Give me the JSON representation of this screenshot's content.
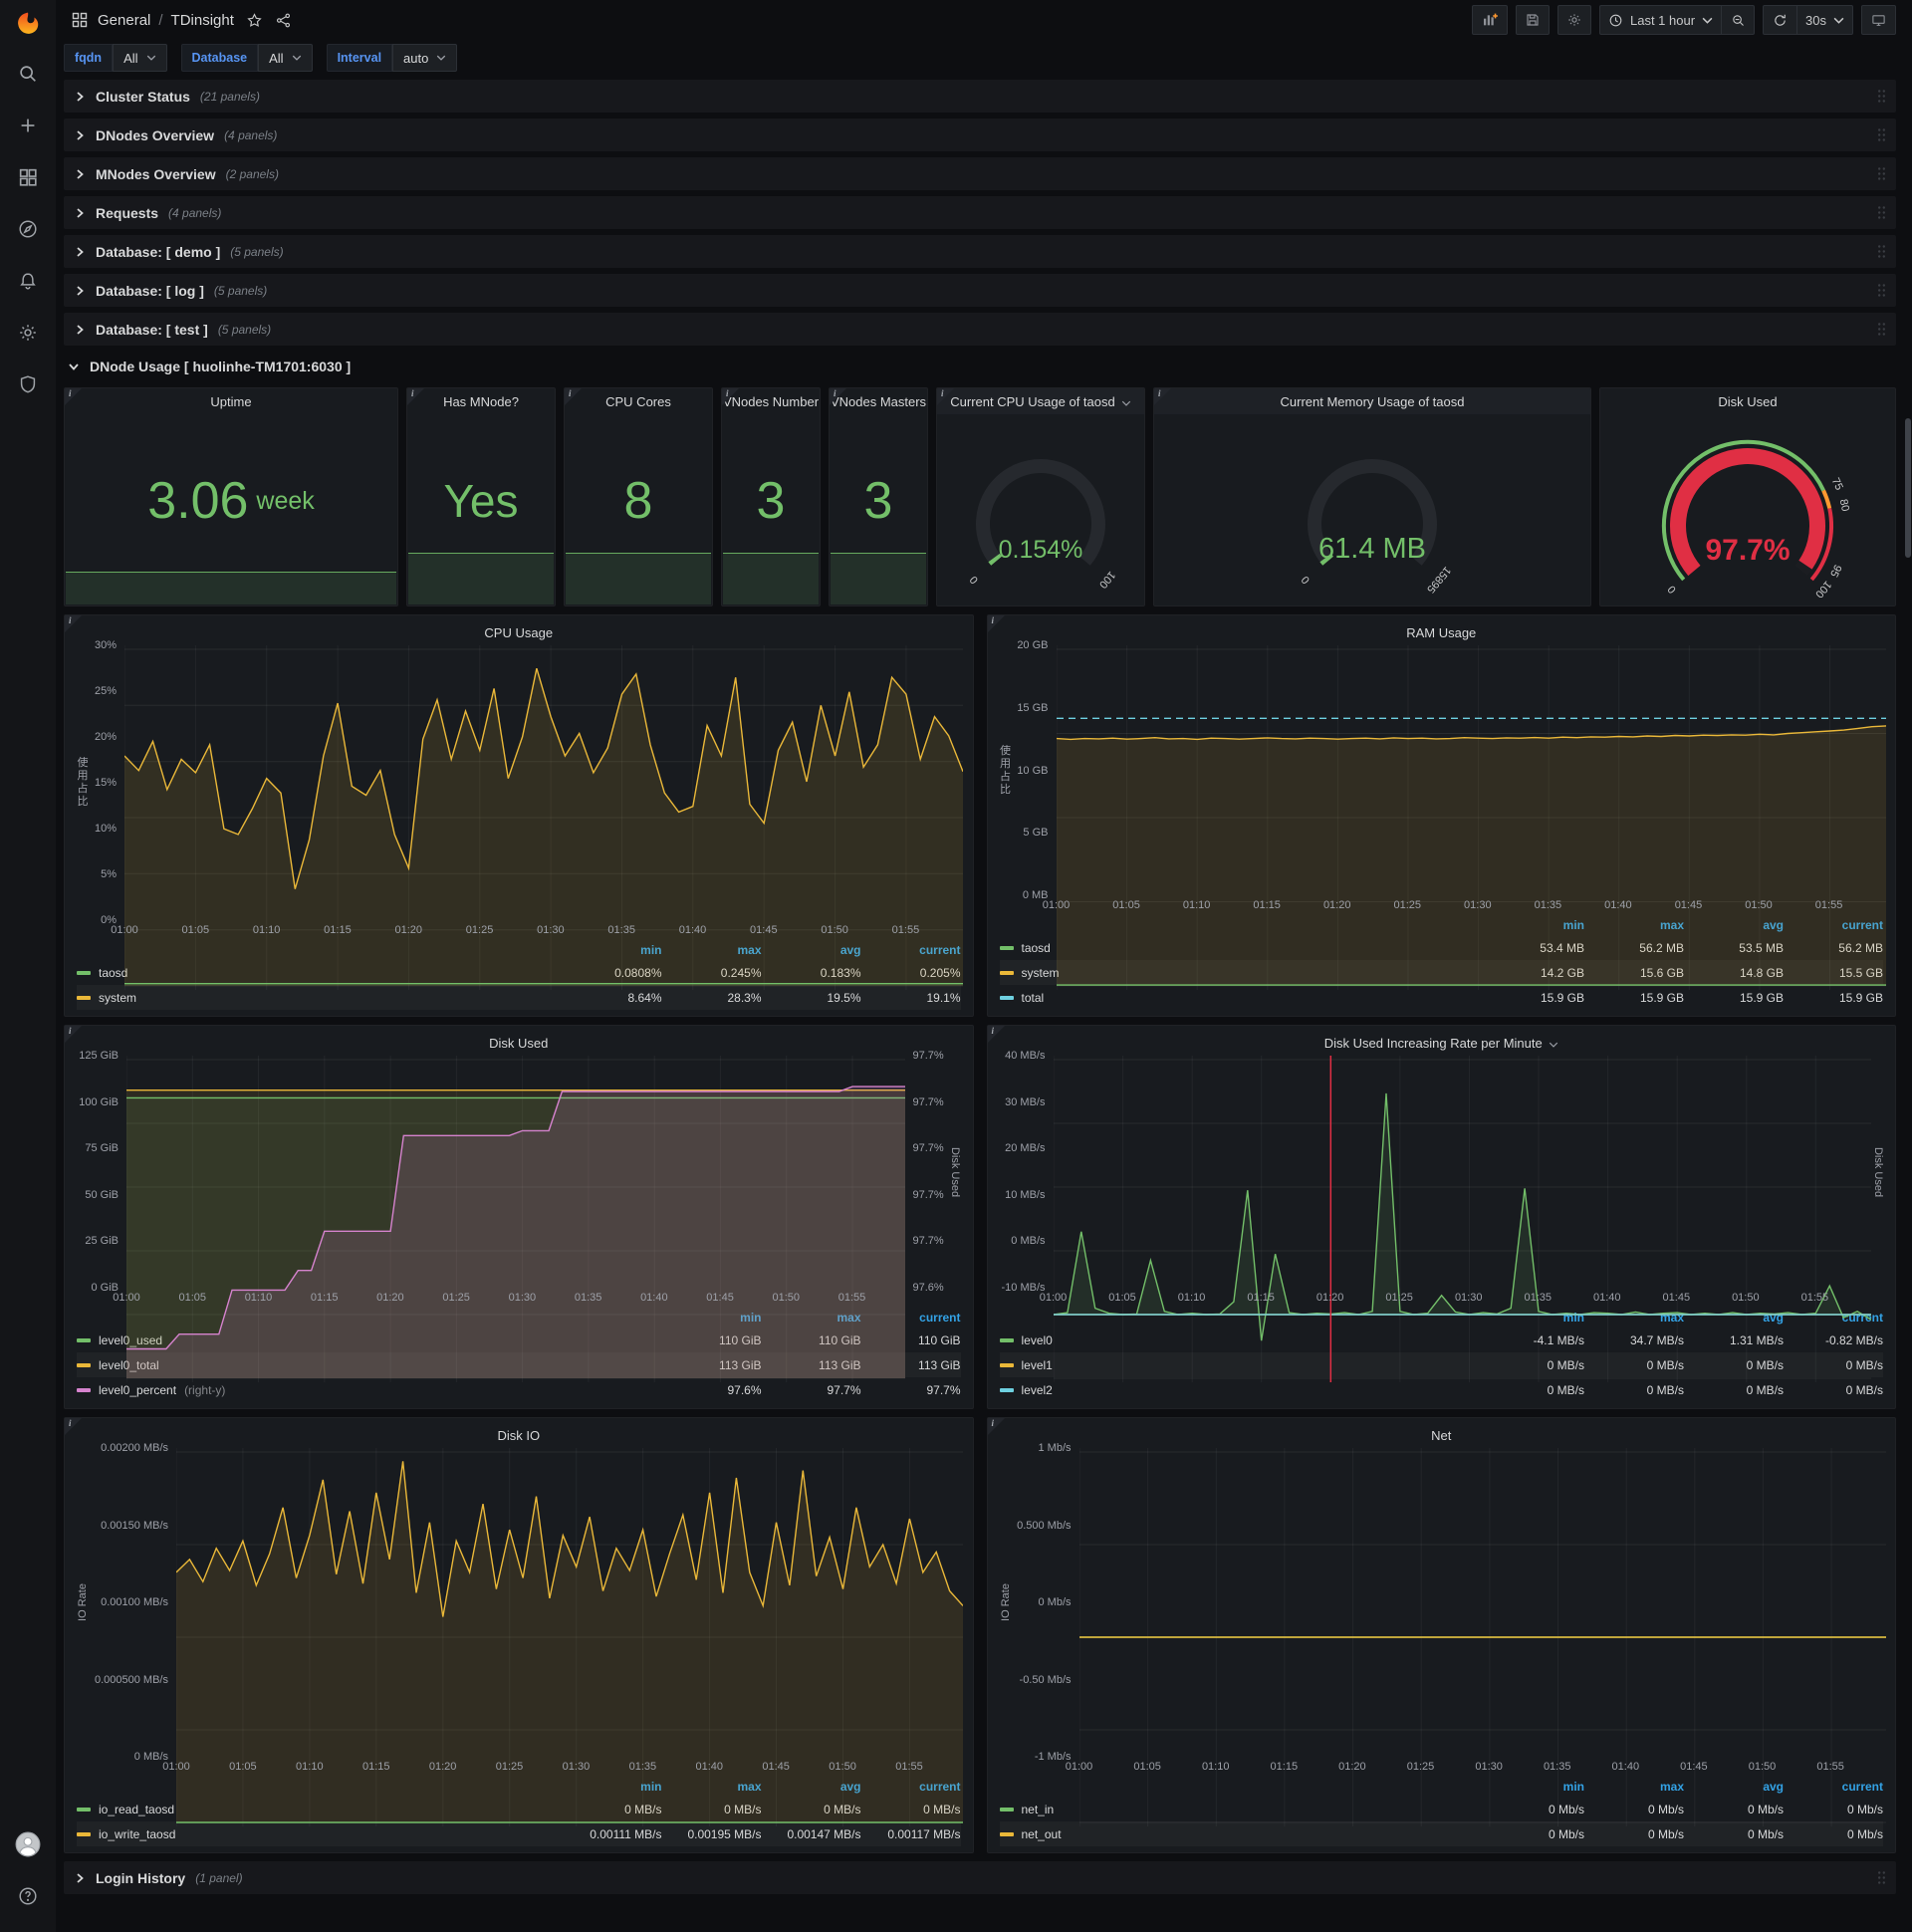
{
  "nav": {
    "section": "General",
    "separator": "/",
    "title": "TDinsight",
    "time_range": "Last 1 hour",
    "refresh": "30s"
  },
  "variables": [
    {
      "label": "fqdn",
      "value": "All"
    },
    {
      "label": "Database",
      "value": "All"
    },
    {
      "label": "Interval",
      "value": "auto"
    }
  ],
  "rows": [
    {
      "title": "Cluster Status",
      "count": "(21 panels)"
    },
    {
      "title": "DNodes Overview",
      "count": "(4 panels)"
    },
    {
      "title": "MNodes Overview",
      "count": "(2 panels)"
    },
    {
      "title": "Requests",
      "count": "(4 panels)"
    },
    {
      "title": "Database: [ demo ]",
      "count": "(5 panels)"
    },
    {
      "title": "Database: [ log ]",
      "count": "(5 panels)"
    },
    {
      "title": "Database: [ test ]",
      "count": "(5 panels)"
    }
  ],
  "expanded_row": {
    "title": "DNode Usage [ huolinhe-TM1701:6030 ]"
  },
  "footer_row": {
    "title": "Login History",
    "count": "(1 panel)"
  },
  "stats": [
    {
      "title": "Uptime",
      "value": "3.06",
      "suffix": "week"
    },
    {
      "title": "Has MNode?",
      "value": "Yes",
      "suffix": ""
    },
    {
      "title": "CPU Cores",
      "value": "8",
      "suffix": ""
    },
    {
      "title": "VNodes Number",
      "value": "3",
      "suffix": ""
    },
    {
      "title": "VNodes Masters",
      "value": "3",
      "suffix": ""
    }
  ],
  "gauges": [
    {
      "title": "Current CPU Usage of taosd",
      "dropdown": true,
      "value": "0.154%",
      "fraction": 0.0018,
      "scale_labels": [
        "0",
        "100"
      ],
      "thresholds": false,
      "info": true
    },
    {
      "title": "Current Memory Usage of taosd",
      "dropdown": false,
      "value": "61.4 MB",
      "fraction": 0.0039,
      "scale_labels": [
        "0",
        "15895"
      ],
      "thresholds": false,
      "info": true
    },
    {
      "title": "Disk Used",
      "dropdown": false,
      "value": "97.7%",
      "fraction": 0.977,
      "scale_labels": [
        "0",
        "75",
        "80",
        "95",
        "100"
      ],
      "thresholds": true,
      "info": false
    }
  ],
  "colors": {
    "green": "#73bf69",
    "yellow": "#eab839",
    "blue": "#6ed0e0",
    "magenta": "#d683ce",
    "red": "#e02f44",
    "orange": "#ff9830",
    "header_blue": "#33a2e5"
  },
  "chart_data": [
    {
      "id": "cpu-usage",
      "type": "line",
      "title": "CPU Usage",
      "title_dropdown": false,
      "ylabel": "使用占比",
      "ylim": [
        0,
        30
      ],
      "yticks": [
        "30%",
        "25%",
        "20%",
        "15%",
        "10%",
        "5%",
        "0%"
      ],
      "xticks": [
        "01:00",
        "01:05",
        "01:10",
        "01:15",
        "01:20",
        "01:25",
        "01:30",
        "01:35",
        "01:40",
        "01:45",
        "01:50",
        "01:55"
      ],
      "series": [
        {
          "name": "system",
          "color": "#eab839",
          "fill": 0.13,
          "values": [
            20.5,
            19.2,
            21.8,
            17.5,
            20.2,
            19.0,
            21.5,
            14.0,
            13.5,
            15.8,
            18.5,
            17.2,
            8.64,
            13.0,
            20.5,
            25.2,
            17.8,
            17.0,
            19.2,
            13.5,
            10.5,
            22.0,
            25.5,
            20.2,
            24.5,
            21.0,
            26.5,
            18.5,
            22.2,
            28.3,
            24.0,
            20.5,
            22.5,
            19.0,
            21.2,
            26.0,
            27.8,
            21.5,
            17.2,
            15.5,
            16.0,
            23.2,
            20.5,
            27.5,
            16.2,
            14.5,
            21.0,
            23.5,
            18.2,
            25.0,
            20.5,
            26.2,
            19.5,
            21.5,
            27.5,
            26.0,
            20.2,
            24.0,
            22.3,
            19.1
          ]
        },
        {
          "name": "taosd",
          "color": "#73bf69",
          "fill": 0.08,
          "values": [
            0.2,
            0.2
          ]
        }
      ],
      "legend": {
        "headers": [
          "min",
          "max",
          "avg",
          "current"
        ],
        "rows": [
          {
            "name": "taosd",
            "color": "#73bf69",
            "note": "",
            "values": [
              "0.0808%",
              "0.245%",
              "0.183%",
              "0.205%"
            ]
          },
          {
            "name": "system",
            "color": "#eab839",
            "note": "",
            "values": [
              "8.64%",
              "28.3%",
              "19.5%",
              "19.1%"
            ]
          }
        ]
      }
    },
    {
      "id": "ram-usage",
      "type": "line",
      "title": "RAM Usage",
      "title_dropdown": false,
      "ylabel": "使用占比",
      "ylim": [
        0,
        20
      ],
      "yticks": [
        "20 GB",
        "15 GB",
        "10 GB",
        "5 GB",
        "0 MB"
      ],
      "xticks": [
        "01:00",
        "01:05",
        "01:10",
        "01:15",
        "01:20",
        "01:25",
        "01:30",
        "01:35",
        "01:40",
        "01:45",
        "01:50",
        "01:55"
      ],
      "series": [
        {
          "name": "system",
          "color": "#eab839",
          "fill": 0.12,
          "values": [
            14.7,
            14.65,
            14.7,
            14.68,
            14.72,
            14.66,
            14.7,
            14.75,
            14.68,
            14.7,
            14.65,
            14.72,
            14.7,
            14.66,
            14.7,
            14.74,
            14.7,
            14.68,
            14.72,
            14.7,
            14.66,
            14.7,
            14.72,
            14.68,
            14.74,
            14.7,
            14.72,
            14.68,
            14.7,
            14.75,
            14.72,
            14.7,
            14.74,
            14.72,
            14.76,
            14.72,
            14.78,
            14.75,
            14.8,
            14.78,
            14.82,
            14.8,
            14.85,
            14.82,
            14.88,
            14.85,
            14.9,
            14.88,
            14.92,
            14.9,
            14.95,
            14.92,
            15.0,
            15.05,
            15.1,
            15.15,
            15.2,
            15.3,
            15.4,
            15.45
          ]
        },
        {
          "name": "total",
          "color": "#6ed0e0",
          "fill": 0,
          "dash": true,
          "values": [
            15.9,
            15.9
          ]
        },
        {
          "name": "taosd",
          "color": "#73bf69",
          "fill": 0.08,
          "values": [
            0.055,
            0.055
          ]
        }
      ],
      "legend": {
        "headers": [
          "min",
          "max",
          "avg",
          "current"
        ],
        "rows": [
          {
            "name": "taosd",
            "color": "#73bf69",
            "note": "",
            "values": [
              "53.4 MB",
              "56.2 MB",
              "53.5 MB",
              "56.2 MB"
            ]
          },
          {
            "name": "system",
            "color": "#eab839",
            "note": "",
            "values": [
              "14.2 GB",
              "15.6 GB",
              "14.8 GB",
              "15.5 GB"
            ]
          },
          {
            "name": "total",
            "color": "#6ed0e0",
            "note": "",
            "values": [
              "15.9 GB",
              "15.9 GB",
              "15.9 GB",
              "15.9 GB"
            ]
          }
        ]
      }
    },
    {
      "id": "disk-used",
      "type": "line",
      "title": "Disk Used",
      "title_dropdown": false,
      "ylabel": "",
      "ylim": [
        0,
        125
      ],
      "yticks": [
        "125 GiB",
        "100 GiB",
        "75 GiB",
        "50 GiB",
        "25 GiB",
        "0 GiB"
      ],
      "right_label": "Disk Used",
      "right_ylim": [
        97.59,
        97.72
      ],
      "right_ticks": [
        "97.7%",
        "97.7%",
        "97.7%",
        "97.7%",
        "97.7%",
        "97.6%"
      ],
      "xticks": [
        "01:00",
        "01:05",
        "01:10",
        "01:15",
        "01:20",
        "01:25",
        "01:30",
        "01:35",
        "01:40",
        "01:45",
        "01:50",
        "01:55"
      ],
      "series": [
        {
          "name": "level0_total",
          "color": "#eab839",
          "fill": 0.1,
          "values": [
            113,
            113
          ]
        },
        {
          "name": "level0_used",
          "color": "#73bf69",
          "fill": 0.1,
          "values": [
            110,
            110
          ]
        },
        {
          "name": "level0_percent",
          "color": "#d683ce",
          "fill": 0.16,
          "axis": "right",
          "values": [
            97.602,
            97.602,
            97.602,
            97.602,
            97.608,
            97.608,
            97.608,
            97.608,
            97.626,
            97.626,
            97.626,
            97.626,
            97.626,
            97.634,
            97.634,
            97.65,
            97.65,
            97.65,
            97.65,
            97.65,
            97.65,
            97.689,
            97.689,
            97.689,
            97.689,
            97.689,
            97.689,
            97.689,
            97.689,
            97.689,
            97.691,
            97.691,
            97.691,
            97.707,
            97.707,
            97.707,
            97.707,
            97.707,
            97.707,
            97.707,
            97.707,
            97.707,
            97.707,
            97.707,
            97.707,
            97.707,
            97.707,
            97.707,
            97.707,
            97.707,
            97.707,
            97.707,
            97.707,
            97.707,
            97.707,
            97.709,
            97.709,
            97.709,
            97.709,
            97.709
          ]
        }
      ],
      "legend": {
        "headers": [
          "min",
          "max",
          "current"
        ],
        "rows": [
          {
            "name": "level0_used",
            "color": "#73bf69",
            "note": "",
            "values": [
              "110 GiB",
              "110 GiB",
              "110 GiB"
            ]
          },
          {
            "name": "level0_total",
            "color": "#eab839",
            "note": "",
            "values": [
              "113 GiB",
              "113 GiB",
              "113 GiB"
            ]
          },
          {
            "name": "level0_percent",
            "color": "#d683ce",
            "note": "(right-y)",
            "values": [
              "97.6%",
              "97.7%",
              "97.7%"
            ]
          }
        ]
      }
    },
    {
      "id": "disk-rate",
      "type": "line",
      "title": "Disk Used Increasing Rate per Minute",
      "title_dropdown": true,
      "ylabel": "",
      "ylim": [
        -10,
        40
      ],
      "yticks": [
        "40 MB/s",
        "30 MB/s",
        "20 MB/s",
        "10 MB/s",
        "0 MB/s",
        "-10 MB/s"
      ],
      "right_label": "Disk Used",
      "annotation_minute": 20,
      "annotation_color": "#e02f44",
      "xticks": [
        "01:00",
        "01:05",
        "01:10",
        "01:15",
        "01:20",
        "01:25",
        "01:30",
        "01:35",
        "01:40",
        "01:45",
        "01:50",
        "01:55"
      ],
      "series": [
        {
          "name": "level0",
          "color": "#73bf69",
          "fill": 0.12,
          "values": [
            0,
            0.3,
            13,
            1,
            0.2,
            0,
            0.1,
            8.5,
            0.5,
            0,
            0.2,
            0,
            0.1,
            2,
            19.5,
            -4.1,
            9.5,
            0.3,
            0,
            0.2,
            0.1,
            0.3,
            0,
            0.5,
            34.7,
            0.5,
            0,
            0.2,
            3,
            0.4,
            0,
            0.3,
            0.1,
            1,
            19.8,
            0.5,
            0,
            0.2,
            0,
            0.3,
            0.2,
            0,
            0.4,
            0,
            0.2,
            0.3,
            0,
            0.2,
            0,
            0.3,
            0,
            0.2,
            0.1,
            0.3,
            0,
            0.2,
            4.5,
            -0.5,
            0.5,
            -0.82
          ]
        },
        {
          "name": "level1",
          "color": "#eab839",
          "fill": 0,
          "values": [
            0,
            0
          ]
        },
        {
          "name": "level2",
          "color": "#6ed0e0",
          "fill": 0,
          "values": [
            0,
            0
          ]
        }
      ],
      "legend": {
        "headers": [
          "min",
          "max",
          "avg",
          "current"
        ],
        "rows": [
          {
            "name": "level0",
            "color": "#73bf69",
            "note": "",
            "values": [
              "-4.1 MB/s",
              "34.7 MB/s",
              "1.31 MB/s",
              "-0.82 MB/s"
            ]
          },
          {
            "name": "level1",
            "color": "#eab839",
            "note": "",
            "values": [
              "0 MB/s",
              "0 MB/s",
              "0 MB/s",
              "0 MB/s"
            ]
          },
          {
            "name": "level2",
            "color": "#6ed0e0",
            "note": "",
            "values": [
              "0 MB/s",
              "0 MB/s",
              "0 MB/s",
              "0 MB/s"
            ]
          }
        ]
      }
    },
    {
      "id": "disk-io",
      "type": "line",
      "title": "Disk IO",
      "title_dropdown": false,
      "ylabel": "IO Rate",
      "ylim": [
        0,
        0.002
      ],
      "yticks": [
        "0.00200 MB/s",
        "0.00150 MB/s",
        "0.00100 MB/s",
        "0.000500 MB/s",
        "0 MB/s"
      ],
      "xticks": [
        "01:00",
        "01:05",
        "01:10",
        "01:15",
        "01:20",
        "01:25",
        "01:30",
        "01:35",
        "01:40",
        "01:45",
        "01:50",
        "01:55"
      ],
      "series": [
        {
          "name": "io_write_taosd",
          "color": "#eab839",
          "fill": 0.12,
          "values": [
            0.00135,
            0.00142,
            0.0013,
            0.00148,
            0.00136,
            0.00152,
            0.00128,
            0.00145,
            0.0017,
            0.00132,
            0.00155,
            0.00185,
            0.00134,
            0.00168,
            0.00129,
            0.00178,
            0.00142,
            0.00195,
            0.00124,
            0.00162,
            0.00111,
            0.00152,
            0.00135,
            0.00172,
            0.00126,
            0.00158,
            0.00132,
            0.00176,
            0.00121,
            0.00155,
            0.00138,
            0.00165,
            0.00125,
            0.00148,
            0.00136,
            0.00158,
            0.00122,
            0.00145,
            0.00166,
            0.00131,
            0.00178,
            0.00124,
            0.00186,
            0.00135,
            0.00117,
            0.00162,
            0.00128,
            0.0019,
            0.00133,
            0.00154,
            0.00126,
            0.0017,
            0.00138,
            0.0015,
            0.00129,
            0.00164,
            0.00135,
            0.00146,
            0.00125,
            0.00117
          ]
        },
        {
          "name": "io_read_taosd",
          "color": "#73bf69",
          "fill": 0,
          "values": [
            0,
            0
          ]
        }
      ],
      "legend": {
        "headers": [
          "min",
          "max",
          "avg",
          "current"
        ],
        "rows": [
          {
            "name": "io_read_taosd",
            "color": "#73bf69",
            "note": "",
            "values": [
              "0 MB/s",
              "0 MB/s",
              "0 MB/s",
              "0 MB/s"
            ]
          },
          {
            "name": "io_write_taosd",
            "color": "#eab839",
            "note": "",
            "values": [
              "0.00111 MB/s",
              "0.00195 MB/s",
              "0.00147 MB/s",
              "0.00117 MB/s"
            ]
          }
        ]
      }
    },
    {
      "id": "net",
      "type": "line",
      "title": "Net",
      "title_dropdown": false,
      "ylabel": "IO Rate",
      "ylim": [
        -1,
        1
      ],
      "yticks": [
        "1 Mb/s",
        "0.500 Mb/s",
        "0 Mb/s",
        "-0.50 Mb/s",
        "-1 Mb/s"
      ],
      "xticks": [
        "01:00",
        "01:05",
        "01:10",
        "01:15",
        "01:20",
        "01:25",
        "01:30",
        "01:35",
        "01:40",
        "01:45",
        "01:50",
        "01:55"
      ],
      "series": [
        {
          "name": "net_in",
          "color": "#73bf69",
          "fill": 0,
          "values": [
            0,
            0
          ]
        },
        {
          "name": "net_out",
          "color": "#eab839",
          "fill": 0,
          "values": [
            0,
            0
          ]
        }
      ],
      "legend": {
        "headers": [
          "min",
          "max",
          "avg",
          "current"
        ],
        "rows": [
          {
            "name": "net_in",
            "color": "#73bf69",
            "note": "",
            "values": [
              "0 Mb/s",
              "0 Mb/s",
              "0 Mb/s",
              "0 Mb/s"
            ]
          },
          {
            "name": "net_out",
            "color": "#eab839",
            "note": "",
            "values": [
              "0 Mb/s",
              "0 Mb/s",
              "0 Mb/s",
              "0 Mb/s"
            ]
          }
        ]
      }
    }
  ]
}
